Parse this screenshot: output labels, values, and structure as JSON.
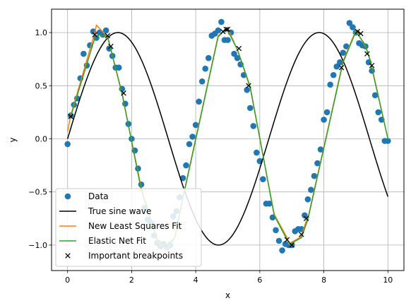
{
  "chart_data": {
    "type": "line",
    "title": "",
    "xlabel": "x",
    "ylabel": "y",
    "xlim": [
      -0.5,
      10.5
    ],
    "ylim": [
      -1.24,
      1.22
    ],
    "xticks": [
      0,
      2,
      4,
      6,
      8,
      10
    ],
    "yticks": [
      -1.0,
      -0.5,
      0.0,
      0.5,
      1.0
    ],
    "xtick_labels": [
      "0",
      "2",
      "4",
      "6",
      "8",
      "10"
    ],
    "ytick_labels": [
      "−1.0",
      "−0.5",
      "0.0",
      "0.5",
      "1.0"
    ],
    "grid": true,
    "legend_position": "lower-left",
    "series": [
      {
        "name": "Data",
        "kind": "scatter",
        "marker": "circle",
        "color": "#1f77b4",
        "x": [
          0.0,
          0.1,
          0.2,
          0.3,
          0.4,
          0.5,
          0.6,
          0.7,
          0.8,
          0.9,
          1.0,
          1.1,
          1.2,
          1.3,
          1.4,
          1.5,
          1.6,
          1.7,
          1.8,
          1.9,
          2.0,
          2.1,
          2.2,
          2.3,
          2.4,
          2.5,
          2.6,
          2.7,
          2.8,
          2.9,
          3.0,
          3.1,
          3.2,
          3.3,
          3.4,
          3.5,
          3.6,
          3.7,
          3.8,
          3.9,
          4.0,
          4.1,
          4.2,
          4.3,
          4.4,
          4.5,
          4.6,
          4.7,
          4.8,
          4.9,
          5.0,
          5.1,
          5.2,
          5.3,
          5.4,
          5.5,
          5.6,
          5.7,
          5.8,
          5.9,
          6.0,
          6.1,
          6.2,
          6.3,
          6.4,
          6.5,
          6.6,
          6.7,
          6.8,
          6.9,
          7.0,
          7.1,
          7.2,
          7.3,
          7.4,
          7.5,
          7.6,
          7.7,
          7.8,
          7.9,
          8.0,
          8.1,
          8.2,
          8.3,
          8.4,
          8.5,
          8.6,
          8.7,
          8.8,
          8.9,
          9.0,
          9.1,
          9.2,
          9.3,
          9.4,
          9.5,
          9.6,
          9.7,
          9.8,
          9.9,
          10.0
        ],
        "y": [
          -0.05,
          0.22,
          0.32,
          0.38,
          0.57,
          0.8,
          0.69,
          0.88,
          1.01,
          0.95,
          1.0,
          0.98,
          1.02,
          0.85,
          0.78,
          0.67,
          0.67,
          0.47,
          0.33,
          0.14,
          0.0,
          -0.11,
          -0.28,
          -0.43,
          -0.65,
          -0.76,
          -0.79,
          -0.91,
          -0.98,
          -1.01,
          -0.99,
          -1.02,
          -1.0,
          -0.73,
          -0.68,
          -0.55,
          -0.37,
          -0.25,
          -0.05,
          0.02,
          0.13,
          0.35,
          0.54,
          0.66,
          0.76,
          0.97,
          0.99,
          1.02,
          1.1,
          0.93,
          0.93,
          1.0,
          0.8,
          0.76,
          0.7,
          0.6,
          0.46,
          0.29,
          0.12,
          -0.13,
          -0.21,
          -0.38,
          -0.61,
          -0.61,
          -0.74,
          -0.86,
          -0.96,
          -1.05,
          -0.99,
          -1.0,
          -1.0,
          -0.87,
          -0.85,
          -0.85,
          -0.72,
          -0.57,
          -0.48,
          -0.35,
          -0.23,
          -0.1,
          0.18,
          0.25,
          0.51,
          0.6,
          0.68,
          0.72,
          0.81,
          0.87,
          1.09,
          1.05,
          1.0,
          0.9,
          0.88,
          0.87,
          0.72,
          0.64,
          0.41,
          0.25,
          0.18,
          -0.02,
          -0.02
        ]
      },
      {
        "name": "True sine wave",
        "kind": "line",
        "color": "#000000",
        "function": "sin"
      },
      {
        "name": "New Least Squares Fit",
        "kind": "line",
        "color": "#ff7f0e",
        "x": [
          0.0,
          0.1,
          0.85,
          0.9,
          1.25,
          1.7,
          2.3,
          2.8,
          3.1,
          3.35,
          3.6,
          4.7,
          4.9,
          5.0,
          5.3,
          5.7,
          6.45,
          6.85,
          6.9,
          7.3,
          7.45,
          7.5,
          8.6,
          9.0,
          9.3,
          9.45,
          10.0
        ],
        "y": [
          0.07,
          0.22,
          1.0,
          1.07,
          0.96,
          0.42,
          -0.46,
          -0.97,
          -1.04,
          -0.93,
          -0.55,
          0.97,
          1.02,
          1.04,
          0.84,
          0.48,
          -0.71,
          -0.93,
          -0.99,
          -0.92,
          -0.77,
          -0.75,
          0.73,
          1.02,
          0.87,
          0.74,
          -0.0
        ]
      },
      {
        "name": "Elastic Net Fit",
        "kind": "line",
        "color": "#2ca02c",
        "x": [
          0.1,
          0.85,
          1.0,
          1.25,
          1.7,
          2.3,
          2.8,
          3.1,
          3.35,
          3.6,
          4.7,
          4.9,
          5.0,
          5.3,
          5.7,
          6.45,
          6.85,
          6.95,
          7.3,
          7.5,
          8.6,
          9.0,
          9.3,
          9.45,
          10.0
        ],
        "y": [
          0.21,
          0.95,
          0.98,
          0.96,
          0.43,
          -0.48,
          -0.95,
          -1.0,
          -0.93,
          -0.56,
          0.96,
          1.02,
          1.02,
          0.84,
          0.49,
          -0.72,
          -0.95,
          -0.99,
          -0.93,
          -0.76,
          0.72,
          1.01,
          0.88,
          0.73,
          0.0
        ]
      },
      {
        "name": "Important breakpoints",
        "kind": "scatter",
        "marker": "x",
        "color": "#000000",
        "x": [
          0.1,
          0.85,
          1.25,
          1.35,
          1.75,
          4.85,
          4.95,
          5.0,
          5.35,
          5.65,
          6.85,
          7.0,
          7.3,
          7.45,
          8.55,
          9.05,
          9.15,
          9.35,
          9.5
        ],
        "y": [
          0.21,
          0.98,
          0.97,
          0.87,
          0.43,
          1.01,
          1.03,
          1.03,
          0.85,
          0.5,
          -0.95,
          -1.0,
          -0.9,
          -0.75,
          0.67,
          1.01,
          0.99,
          0.8,
          0.69
        ]
      }
    ]
  }
}
